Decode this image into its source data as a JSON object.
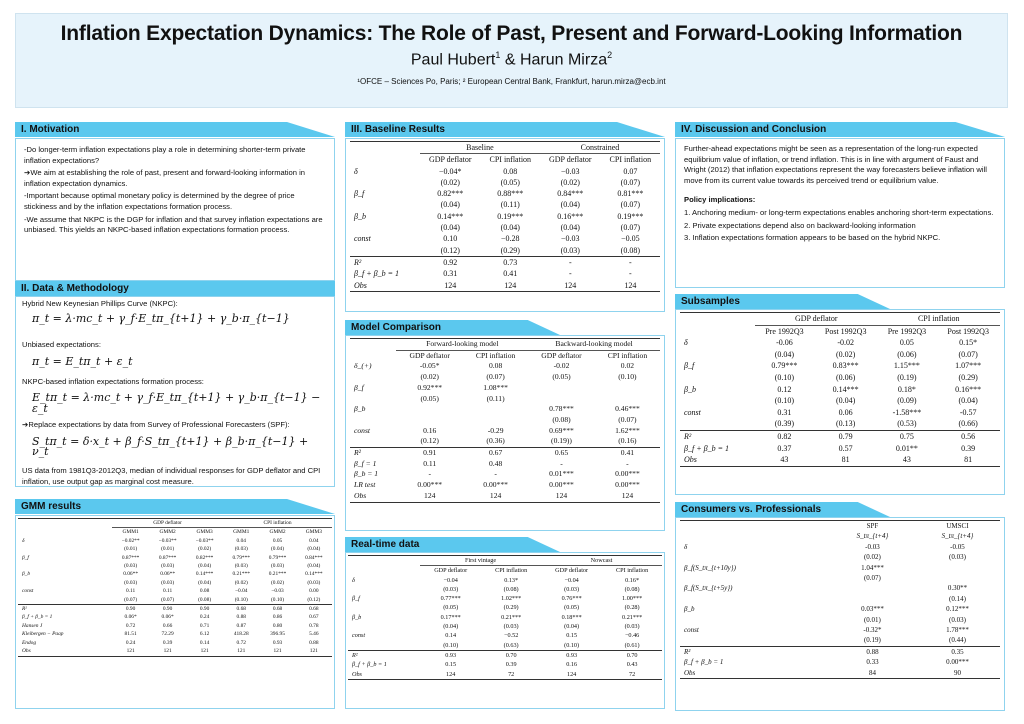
{
  "header": {
    "title": "Inflation Expectation Dynamics: The Role of Past, Present and Forward-Looking Information",
    "authors_a": "Paul Hubert",
    "sup1": "1",
    "authors_and": " & Harun Mirza",
    "sup2": "2",
    "affiliation": "¹OFCE – Sciences Po, Paris; ² European Central Bank, Frankfurt, harun.mirza@ecb.int"
  },
  "motivation": {
    "title": "I. Motivation",
    "p1": "-Do longer-term inflation expectations play a role in determining shorter-term private inflation expectations?",
    "p2": "➔We aim at establishing the role of past, present and forward-looking information in inflation expectation dynamics.",
    "p3": "-Important because optimal monetary policy is determined by the degree of price stickiness and by the inflation expectations formation process.",
    "p4": "-We assume that NKPC is the DGP for inflation and that survey inflation expectations are unbiased. This yields an NKPC-based inflation expectations formation process."
  },
  "data_method": {
    "title": "II. Data & Methodology",
    "l1": "Hybrid New Keynesian Phillips Curve (NKPC):",
    "eq1": "π_t = λ·mc_t + γ_f·E_tπ_{t+1} + γ_b·π_{t−1}",
    "l2": "Unbiased expectations:",
    "eq2": "π_t = E_tπ_t + ε_t",
    "l3": "NKPC-based inflation expectations formation process:",
    "eq3": "E_tπ_t = λ·mc_t + γ_f·E_tπ_{t+1} + γ_b·π_{t−1} − ε_t",
    "l4": "➔Replace expectations by data from Survey of Professional Forecasters (SPF):",
    "eq4": "S_tπ_t = δ·x_t + β_f·S_tπ_{t+1} + β_b·π_{t−1} + ν_t",
    "l5": "US data from 1981Q3-2012Q3, median of individual responses for GDP deflator and CPI inflation, use output gap as marginal cost measure."
  },
  "gmm": {
    "title": "GMM results",
    "groups": [
      "GDP deflator",
      "CPI inflation"
    ],
    "cols": [
      "GMM1",
      "GMM2",
      "GMM3",
      "GMM1",
      "GMM2",
      "GMM3"
    ],
    "rows": [
      {
        "label": "δ",
        "vals": [
          "−0.02**",
          "−0.03**",
          "−0.03**",
          "0.04",
          "0.05",
          "0.04"
        ]
      },
      {
        "label": "",
        "vals": [
          "(0.01)",
          "(0.01)",
          "(0.02)",
          "(0.03)",
          "(0.04)",
          "(0.04)"
        ]
      },
      {
        "label": "β_f",
        "vals": [
          "0.87***",
          "0.87***",
          "0.82***",
          "0.79***",
          "0.79***",
          "0.84***"
        ]
      },
      {
        "label": "",
        "vals": [
          "(0.03)",
          "(0.03)",
          "(0.04)",
          "(0.03)",
          "(0.03)",
          "(0.04)"
        ]
      },
      {
        "label": "β_b",
        "vals": [
          "0.06**",
          "0.06**",
          "0.14***",
          "0.21***",
          "0.21***",
          "0.14***"
        ]
      },
      {
        "label": "",
        "vals": [
          "(0.03)",
          "(0.03)",
          "(0.04)",
          "(0.02)",
          "(0.02)",
          "(0.03)"
        ]
      },
      {
        "label": "const",
        "vals": [
          "0.11",
          "0.11",
          "0.08",
          "−0.04",
          "−0.03",
          "0.00"
        ]
      },
      {
        "label": "",
        "vals": [
          "(0.07)",
          "(0.07)",
          "(0.08)",
          "(0.10)",
          "(0.10)",
          "(0.12)"
        ]
      }
    ],
    "stats": [
      {
        "label": "R²",
        "vals": [
          "0.90",
          "0.90",
          "0.90",
          "0.68",
          "0.68",
          "0.68"
        ]
      },
      {
        "label": "β_f + β_b = 1",
        "vals": [
          "0.06*",
          "0.06*",
          "0.24",
          "0.88",
          "0.86",
          "0.67"
        ]
      },
      {
        "label": "Hansen J",
        "vals": [
          "0.72",
          "0.66",
          "0.71",
          "0.87",
          "0.80",
          "0.78"
        ]
      },
      {
        "label": "Kleibergen − Paap",
        "vals": [
          "81.51",
          "72.29",
          "6.12",
          "418.28",
          "396.95",
          "5.46"
        ]
      },
      {
        "label": "Endog",
        "vals": [
          "0.24",
          "0.39",
          "0.14",
          "0.72",
          "0.93",
          "0.88"
        ]
      },
      {
        "label": "Obs",
        "vals": [
          "121",
          "121",
          "121",
          "121",
          "121",
          "121"
        ]
      }
    ]
  },
  "baseline": {
    "title": "III. Baseline Results",
    "groups": [
      "Baseline",
      "Constrained"
    ],
    "cols": [
      "GDP deflator",
      "CPI inflation",
      "GDP deflator",
      "CPI inflation"
    ],
    "rows": [
      {
        "label": "δ",
        "vals": [
          "−0.04*",
          "0.08",
          "−0.03",
          "0.07"
        ]
      },
      {
        "label": "",
        "vals": [
          "(0.02)",
          "(0.05)",
          "(0.02)",
          "(0.07)"
        ]
      },
      {
        "label": "β_f",
        "vals": [
          "0.82***",
          "0.88***",
          "0.84***",
          "0.81***"
        ]
      },
      {
        "label": "",
        "vals": [
          "(0.04)",
          "(0.11)",
          "(0.04)",
          "(0.07)"
        ]
      },
      {
        "label": "β_b",
        "vals": [
          "0.14***",
          "0.19***",
          "0.16***",
          "0.19***"
        ]
      },
      {
        "label": "",
        "vals": [
          "(0.04)",
          "(0.04)",
          "(0.04)",
          "(0.07)"
        ]
      },
      {
        "label": "const",
        "vals": [
          "0.10",
          "−0.28",
          "−0.03",
          "−0.05"
        ]
      },
      {
        "label": "",
        "vals": [
          "(0.12)",
          "(0.29)",
          "(0.03)",
          "(0.08)"
        ]
      }
    ],
    "stats": [
      {
        "label": "R²",
        "vals": [
          "0.92",
          "0.73",
          "-",
          "-"
        ]
      },
      {
        "label": "β_f + β_b = 1",
        "vals": [
          "0.31",
          "0.41",
          "-",
          "-"
        ]
      },
      {
        "label": "Obs",
        "vals": [
          "124",
          "124",
          "124",
          "124"
        ]
      }
    ]
  },
  "model_comparison": {
    "title": "Model Comparison",
    "groups": [
      "Forward-looking model",
      "Backward-looking model"
    ],
    "cols": [
      "GDP deflator",
      "CPI inflation",
      "GDP deflator",
      "CPI inflation"
    ],
    "rows": [
      {
        "label": "δ_(+)",
        "vals": [
          "-0.05*",
          "0.08",
          "-0.02",
          "0.02"
        ]
      },
      {
        "label": "",
        "vals": [
          "(0.02)",
          "(0.07)",
          "(0.05)",
          "(0.10)"
        ]
      },
      {
        "label": "β_f",
        "vals": [
          "0.92***",
          "1.08***",
          "",
          ""
        ]
      },
      {
        "label": "",
        "vals": [
          "(0.05)",
          "(0.11)",
          "",
          ""
        ]
      },
      {
        "label": "β_b",
        "vals": [
          "",
          "",
          "0.78***",
          "0.46***"
        ]
      },
      {
        "label": "",
        "vals": [
          "",
          "",
          "(0.08)",
          "(0.07)"
        ]
      },
      {
        "label": "const",
        "vals": [
          "0.16",
          "-0.29",
          "0.69***",
          "1.62***"
        ]
      },
      {
        "label": "",
        "vals": [
          "(0.12)",
          "(0.36)",
          "(0.19))",
          "(0.16)"
        ]
      }
    ],
    "stats": [
      {
        "label": "R²",
        "vals": [
          "0.91",
          "0.67",
          "0.65",
          "0.41"
        ]
      },
      {
        "label": "β_f = 1",
        "vals": [
          "0.11",
          "0.48",
          "-",
          "-"
        ]
      },
      {
        "label": "β_b = 1",
        "vals": [
          "-",
          "-",
          "0.01***",
          "0.00***"
        ]
      },
      {
        "label": "LR test",
        "vals": [
          "0.00***",
          "0.00***",
          "0.00***",
          "0.00***"
        ]
      },
      {
        "label": "Obs",
        "vals": [
          "124",
          "124",
          "124",
          "124"
        ]
      }
    ]
  },
  "realtime": {
    "title": "Real-time data",
    "groups": [
      "First vintage",
      "Nowcast"
    ],
    "cols": [
      "GDP deflator",
      "CPI inflation",
      "GDP deflator",
      "CPI inflation"
    ],
    "rows": [
      {
        "label": "δ",
        "vals": [
          "−0.04",
          "0.13*",
          "−0.04",
          "0.16*"
        ]
      },
      {
        "label": "",
        "vals": [
          "(0.03)",
          "(0.08)",
          "(0.03)",
          "(0.08)"
        ]
      },
      {
        "label": "β_f",
        "vals": [
          "0.77***",
          "1.02***",
          "0.76***",
          "1.00***"
        ]
      },
      {
        "label": "",
        "vals": [
          "(0.05)",
          "(0.29)",
          "(0.05)",
          "(0.28)"
        ]
      },
      {
        "label": "β_b",
        "vals": [
          "0.17***",
          "0.21***",
          "0.18***",
          "0.21***"
        ]
      },
      {
        "label": "",
        "vals": [
          "(0.04)",
          "(0.03)",
          "(0.04)",
          "(0.03)"
        ]
      },
      {
        "label": "const",
        "vals": [
          "0.14",
          "−0.52",
          "0.15",
          "−0.46"
        ]
      },
      {
        "label": "",
        "vals": [
          "(0.10)",
          "(0.63)",
          "(0.10)",
          "(0.61)"
        ]
      }
    ],
    "stats": [
      {
        "label": "R²",
        "vals": [
          "0.93",
          "0.70",
          "0.93",
          "0.70"
        ]
      },
      {
        "label": "β_f + β_b = 1",
        "vals": [
          "0.15",
          "0.39",
          "0.16",
          "0.43"
        ]
      },
      {
        "label": "Obs",
        "vals": [
          "124",
          "72",
          "124",
          "72"
        ]
      }
    ]
  },
  "discussion": {
    "title": "IV. Discussion and Conclusion",
    "p1": "Further-ahead expectations might be seen as a representation of the long-run expected equilibrium value of inflation, or trend inflation. This is in line with argument of Faust and Wright (2012) that inflation expectations represent the way forecasters believe inflation will move from its current value towards its perceived trend or equilibrium value.",
    "policy_title": "Policy implications:",
    "i1": "1. Anchoring medium- or long-term expectations enables anchoring short-term expectations.",
    "i2": "2. Private expectations depend also on backward-looking information",
    "i3": "3. Inflation expectations formation appears to be based on the hybrid NKPC."
  },
  "subsamples": {
    "title": "Subsamples",
    "groups": [
      "GDP deflator",
      "CPI inflation"
    ],
    "cols": [
      "Pre 1992Q3",
      "Post 1992Q3",
      "Pre 1992Q3",
      "Post 1992Q3"
    ],
    "rows": [
      {
        "label": "δ",
        "vals": [
          "-0.06",
          "-0.02",
          "0.05",
          "0.15*"
        ]
      },
      {
        "label": "",
        "vals": [
          "(0.04)",
          "(0.02)",
          "(0.06)",
          "(0.07)"
        ]
      },
      {
        "label": "β_f",
        "vals": [
          "0.79***",
          "0.83***",
          "1.15***",
          "1.07***"
        ]
      },
      {
        "label": "",
        "vals": [
          "(0.10)",
          "(0.06)",
          "(0.19)",
          "(0.29)"
        ]
      },
      {
        "label": "β_b",
        "vals": [
          "0.12",
          "0.14***",
          "0.18*",
          "0.16***"
        ]
      },
      {
        "label": "",
        "vals": [
          "(0.10)",
          "(0.04)",
          "(0.09)",
          "(0.04)"
        ]
      },
      {
        "label": "const",
        "vals": [
          "0.31",
          "0.06",
          "-1.58***",
          "-0.57"
        ]
      },
      {
        "label": "",
        "vals": [
          "(0.39)",
          "(0.13)",
          "(0.53)",
          "(0.66)"
        ]
      }
    ],
    "stats": [
      {
        "label": "R²",
        "vals": [
          "0.82",
          "0.79",
          "0.75",
          "0.56"
        ]
      },
      {
        "label": "β_f + β_b = 1",
        "vals": [
          "0.37",
          "0.57",
          "0.01**",
          "0.39"
        ]
      },
      {
        "label": "Obs",
        "vals": [
          "43",
          "81",
          "43",
          "81"
        ]
      }
    ]
  },
  "consumers": {
    "title": "Consumers vs. Professionals",
    "cols": [
      "SPF",
      "UMSCI"
    ],
    "subcols": [
      "S_tπ_{t+4}",
      "S_tπ_{t+4}"
    ],
    "rows": [
      {
        "label": "δ",
        "vals": [
          "-0.03",
          "-0.05"
        ]
      },
      {
        "label": "",
        "vals": [
          "(0.02)",
          "(0.03)"
        ]
      },
      {
        "label": "β_f(S_tπ_{t+10y})",
        "vals": [
          "1.04***",
          ""
        ]
      },
      {
        "label": "",
        "vals": [
          "(0.07)",
          ""
        ]
      },
      {
        "label": "β_f(S_tπ_{t+5y})",
        "vals": [
          "",
          "0.30**"
        ]
      },
      {
        "label": "",
        "vals": [
          "",
          "(0.14)"
        ]
      },
      {
        "label": "β_b",
        "vals": [
          "0.03***",
          "0.12***"
        ]
      },
      {
        "label": "",
        "vals": [
          "(0.01)",
          "(0.03)"
        ]
      },
      {
        "label": "const",
        "vals": [
          "-0.32*",
          "1.78***"
        ]
      },
      {
        "label": "",
        "vals": [
          "(0.19)",
          "(0.44)"
        ]
      }
    ],
    "stats": [
      {
        "label": "R²",
        "vals": [
          "0.88",
          "0.35"
        ]
      },
      {
        "label": "β_f + β_b = 1",
        "vals": [
          "0.33",
          "0.00***"
        ]
      },
      {
        "label": "Obs",
        "vals": [
          "84",
          "90"
        ]
      }
    ]
  }
}
